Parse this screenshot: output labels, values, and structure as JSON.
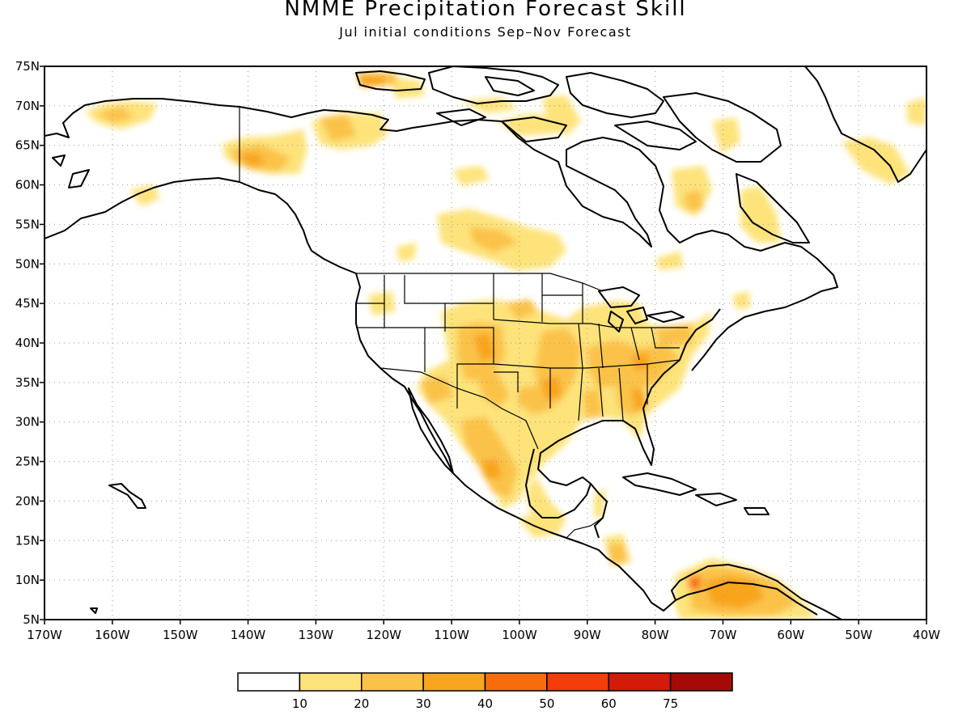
{
  "title": "NMME Precipitation Forecast Skill",
  "subtitle": "Jul initial conditions   Sep–Nov Forecast",
  "lat_labels": [
    "75N",
    "70N",
    "65N",
    "60N",
    "55N",
    "50N",
    "45N",
    "40N",
    "35N",
    "30N",
    "25N",
    "20N",
    "15N",
    "10N",
    "5N"
  ],
  "lon_labels": [
    "170W",
    "160W",
    "150W",
    "140W",
    "130W",
    "120W",
    "110W",
    "100W",
    "90W",
    "80W",
    "70W",
    "60W",
    "50W",
    "40W"
  ],
  "legend": {
    "labels": [
      "10",
      "20",
      "30",
      "40",
      "50",
      "60",
      "75"
    ],
    "colors": [
      "#ffffff",
      "#fde37a",
      "#fbc24a",
      "#f8a51f",
      "#f76d0c",
      "#f43d0b",
      "#d41a08",
      "#a60a08"
    ]
  },
  "colors": {
    "coast": "#000000",
    "grid": "#999999"
  }
}
